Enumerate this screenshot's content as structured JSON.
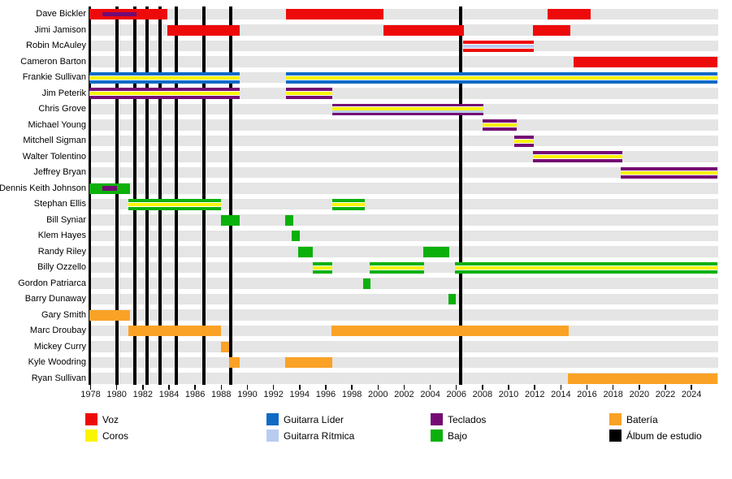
{
  "chart_data": {
    "type": "timeline",
    "description": "Band lineup timeline with studio album markers",
    "x_axis": {
      "start_year": 1978,
      "end_year": 2026,
      "tick_step": 2,
      "tick_labels": [
        "1978",
        "1980",
        "1982",
        "1984",
        "1986",
        "1988",
        "1990",
        "1992",
        "1994",
        "1996",
        "1998",
        "2000",
        "2002",
        "2004",
        "2006",
        "2008",
        "2010",
        "2012",
        "2014",
        "2016",
        "2018",
        "2020",
        "2022",
        "2024"
      ]
    },
    "palette": {
      "voz": "#ED0A0A",
      "coros": "#FAF500",
      "guitarra_lider": "#0E6AC4",
      "guitarra_ritmica": "#B9CCF0",
      "teclados": "#740B74",
      "bajo": "#0BB00B",
      "bateria": "#FAA226",
      "album": "#000000",
      "row_band": "#E5E5E5"
    },
    "legend": [
      {
        "label": "Voz",
        "role": "voz"
      },
      {
        "label": "Coros",
        "role": "coros"
      },
      {
        "label": "Guitarra Líder",
        "role": "guitarra_lider"
      },
      {
        "label": "Guitarra Rítmica",
        "role": "guitarra_ritmica"
      },
      {
        "label": "Teclados",
        "role": "teclados"
      },
      {
        "label": "Bajo",
        "role": "bajo"
      },
      {
        "label": "Batería",
        "role": "bateria"
      },
      {
        "label": "Álbum de estudio",
        "role": "album"
      }
    ],
    "album_years": [
      1980.0,
      1981.4,
      1982.35,
      1983.3,
      1984.55,
      1986.7,
      1988.7,
      2006.35
    ],
    "members": [
      {
        "name": "Dave Bickler",
        "segments": [
          {
            "start": 1977.9,
            "end": 1983.9,
            "roles": [
              "voz"
            ],
            "sub": {
              "role": "teclados",
              "start": 1978.9,
              "end": 1981.5
            }
          },
          {
            "start": 1992.95,
            "end": 2000.45,
            "roles": [
              "voz"
            ]
          },
          {
            "start": 2013.0,
            "end": 2016.3,
            "roles": [
              "voz"
            ]
          }
        ]
      },
      {
        "name": "Jimi Jamison",
        "segments": [
          {
            "start": 1983.9,
            "end": 1989.4,
            "roles": [
              "voz"
            ]
          },
          {
            "start": 2000.45,
            "end": 2006.6,
            "roles": [
              "voz"
            ]
          },
          {
            "start": 2011.85,
            "end": 2014.7,
            "roles": [
              "voz"
            ]
          }
        ]
      },
      {
        "name": "Robin McAuley",
        "segments": [
          {
            "start": 2006.5,
            "end": 2011.95,
            "roles": [
              "voz",
              "guitarra_ritmica"
            ]
          }
        ]
      },
      {
        "name": "Cameron Barton",
        "segments": [
          {
            "start": 2015.0,
            "end": 2025.95,
            "roles": [
              "voz"
            ]
          }
        ]
      },
      {
        "name": "Frankie Sullivan",
        "segments": [
          {
            "start": 1977.9,
            "end": 1989.4,
            "roles": [
              "guitarra_lider",
              "coros"
            ]
          },
          {
            "start": 1992.95,
            "end": 2025.95,
            "roles": [
              "guitarra_lider",
              "coros"
            ]
          }
        ]
      },
      {
        "name": "Jim Peterik",
        "segments": [
          {
            "start": 1977.9,
            "end": 1989.4,
            "roles": [
              "teclados",
              "coros"
            ]
          },
          {
            "start": 1992.95,
            "end": 1996.5,
            "roles": [
              "teclados",
              "coros"
            ]
          }
        ]
      },
      {
        "name": "Chris Grove",
        "segments": [
          {
            "start": 1996.5,
            "end": 2008.1,
            "roles": [
              "teclados",
              "coros",
              "guitarra_ritmica"
            ]
          }
        ]
      },
      {
        "name": "Michael Young",
        "segments": [
          {
            "start": 2008.0,
            "end": 2010.6,
            "roles": [
              "teclados",
              "coros"
            ]
          }
        ]
      },
      {
        "name": "Mitchell Sigman",
        "segments": [
          {
            "start": 2010.45,
            "end": 2011.95,
            "roles": [
              "teclados",
              "coros"
            ]
          }
        ]
      },
      {
        "name": "Walter Tolentino",
        "segments": [
          {
            "start": 2011.85,
            "end": 2018.7,
            "roles": [
              "teclados",
              "coros"
            ]
          }
        ]
      },
      {
        "name": "Jeffrey Bryan",
        "segments": [
          {
            "start": 2018.6,
            "end": 2025.95,
            "roles": [
              "teclados",
              "coros"
            ]
          }
        ]
      },
      {
        "name": "Dennis Keith Johnson",
        "segments": [
          {
            "start": 1977.9,
            "end": 1981.0,
            "roles": [
              "bajo"
            ],
            "sub": {
              "role": "teclados",
              "start": 1978.9,
              "end": 1980.0
            }
          }
        ]
      },
      {
        "name": "Stephan Ellis",
        "segments": [
          {
            "start": 1980.9,
            "end": 1988.0,
            "roles": [
              "bajo",
              "coros"
            ]
          },
          {
            "start": 1996.5,
            "end": 1999.0,
            "roles": [
              "bajo",
              "coros"
            ]
          }
        ]
      },
      {
        "name": "Bill Syniar",
        "segments": [
          {
            "start": 1988.0,
            "end": 1989.4,
            "roles": [
              "bajo"
            ]
          },
          {
            "start": 1992.9,
            "end": 1993.5,
            "roles": [
              "bajo"
            ]
          }
        ]
      },
      {
        "name": "Klem Hayes",
        "segments": [
          {
            "start": 1993.4,
            "end": 1994.0,
            "roles": [
              "bajo"
            ]
          }
        ]
      },
      {
        "name": "Randy Riley",
        "segments": [
          {
            "start": 1993.9,
            "end": 1995.0,
            "roles": [
              "bajo"
            ]
          },
          {
            "start": 2003.45,
            "end": 2005.45,
            "roles": [
              "bajo"
            ]
          }
        ]
      },
      {
        "name": "Billy Ozzello",
        "segments": [
          {
            "start": 1995.0,
            "end": 1996.5,
            "roles": [
              "bajo",
              "coros"
            ]
          },
          {
            "start": 1999.35,
            "end": 2003.5,
            "roles": [
              "bajo",
              "coros"
            ]
          },
          {
            "start": 2005.9,
            "end": 2025.95,
            "roles": [
              "bajo",
              "coros"
            ]
          }
        ]
      },
      {
        "name": "Gordon Patriarca",
        "segments": [
          {
            "start": 1998.85,
            "end": 1999.4,
            "roles": [
              "bajo"
            ]
          }
        ]
      },
      {
        "name": "Barry Dunaway",
        "segments": [
          {
            "start": 2005.4,
            "end": 2005.95,
            "roles": [
              "bajo"
            ]
          }
        ]
      },
      {
        "name": "Gary Smith",
        "segments": [
          {
            "start": 1977.9,
            "end": 1981.0,
            "roles": [
              "bateria"
            ]
          }
        ]
      },
      {
        "name": "Marc Droubay",
        "segments": [
          {
            "start": 1980.9,
            "end": 1988.0,
            "roles": [
              "bateria"
            ]
          },
          {
            "start": 1996.45,
            "end": 2014.6,
            "roles": [
              "bateria"
            ]
          }
        ]
      },
      {
        "name": "Mickey Curry",
        "segments": [
          {
            "start": 1988.0,
            "end": 1988.6,
            "roles": [
              "bateria"
            ]
          }
        ]
      },
      {
        "name": "Kyle Woodring",
        "segments": [
          {
            "start": 1988.6,
            "end": 1989.4,
            "roles": [
              "bateria"
            ]
          },
          {
            "start": 1992.9,
            "end": 1996.5,
            "roles": [
              "bateria"
            ]
          }
        ]
      },
      {
        "name": "Ryan Sullivan",
        "segments": [
          {
            "start": 2014.55,
            "end": 2025.95,
            "roles": [
              "bateria"
            ]
          }
        ]
      }
    ]
  }
}
